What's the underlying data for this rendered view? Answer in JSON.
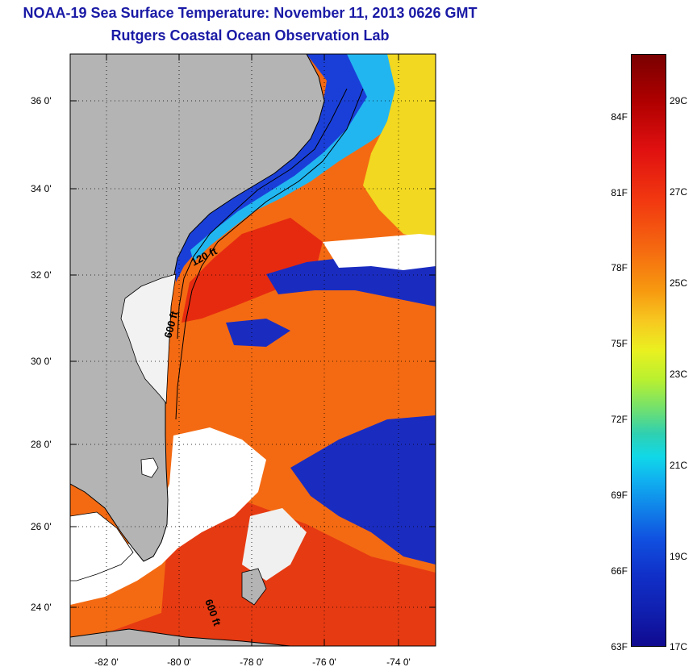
{
  "header": {
    "title": "NOAA-19 Sea Surface Temperature:  November 11, 2013 0626 GMT",
    "subtitle": "Rutgers Coastal Ocean Observation Lab"
  },
  "map": {
    "lat_ticks": [
      "36 0'",
      "34 0'",
      "32 0'",
      "30 0'",
      "28 0'",
      "26 0'",
      "24 0'"
    ],
    "lon_ticks": [
      "-82 0'",
      "-80 0'",
      "-78 0'",
      "-76 0'",
      "-74 0'"
    ],
    "isobath_labels": [
      "120 ft",
      "600 ft",
      "600 ft"
    ],
    "land_color": "#b4b4b4",
    "cloud_color": "#ffffff"
  },
  "colorbar": {
    "fahrenheit": [
      "84F",
      "81F",
      "78F",
      "75F",
      "72F",
      "69F",
      "66F",
      "63F"
    ],
    "celsius": [
      "29C",
      "27C",
      "25C",
      "23C",
      "21C",
      "19C",
      "17C"
    ]
  }
}
